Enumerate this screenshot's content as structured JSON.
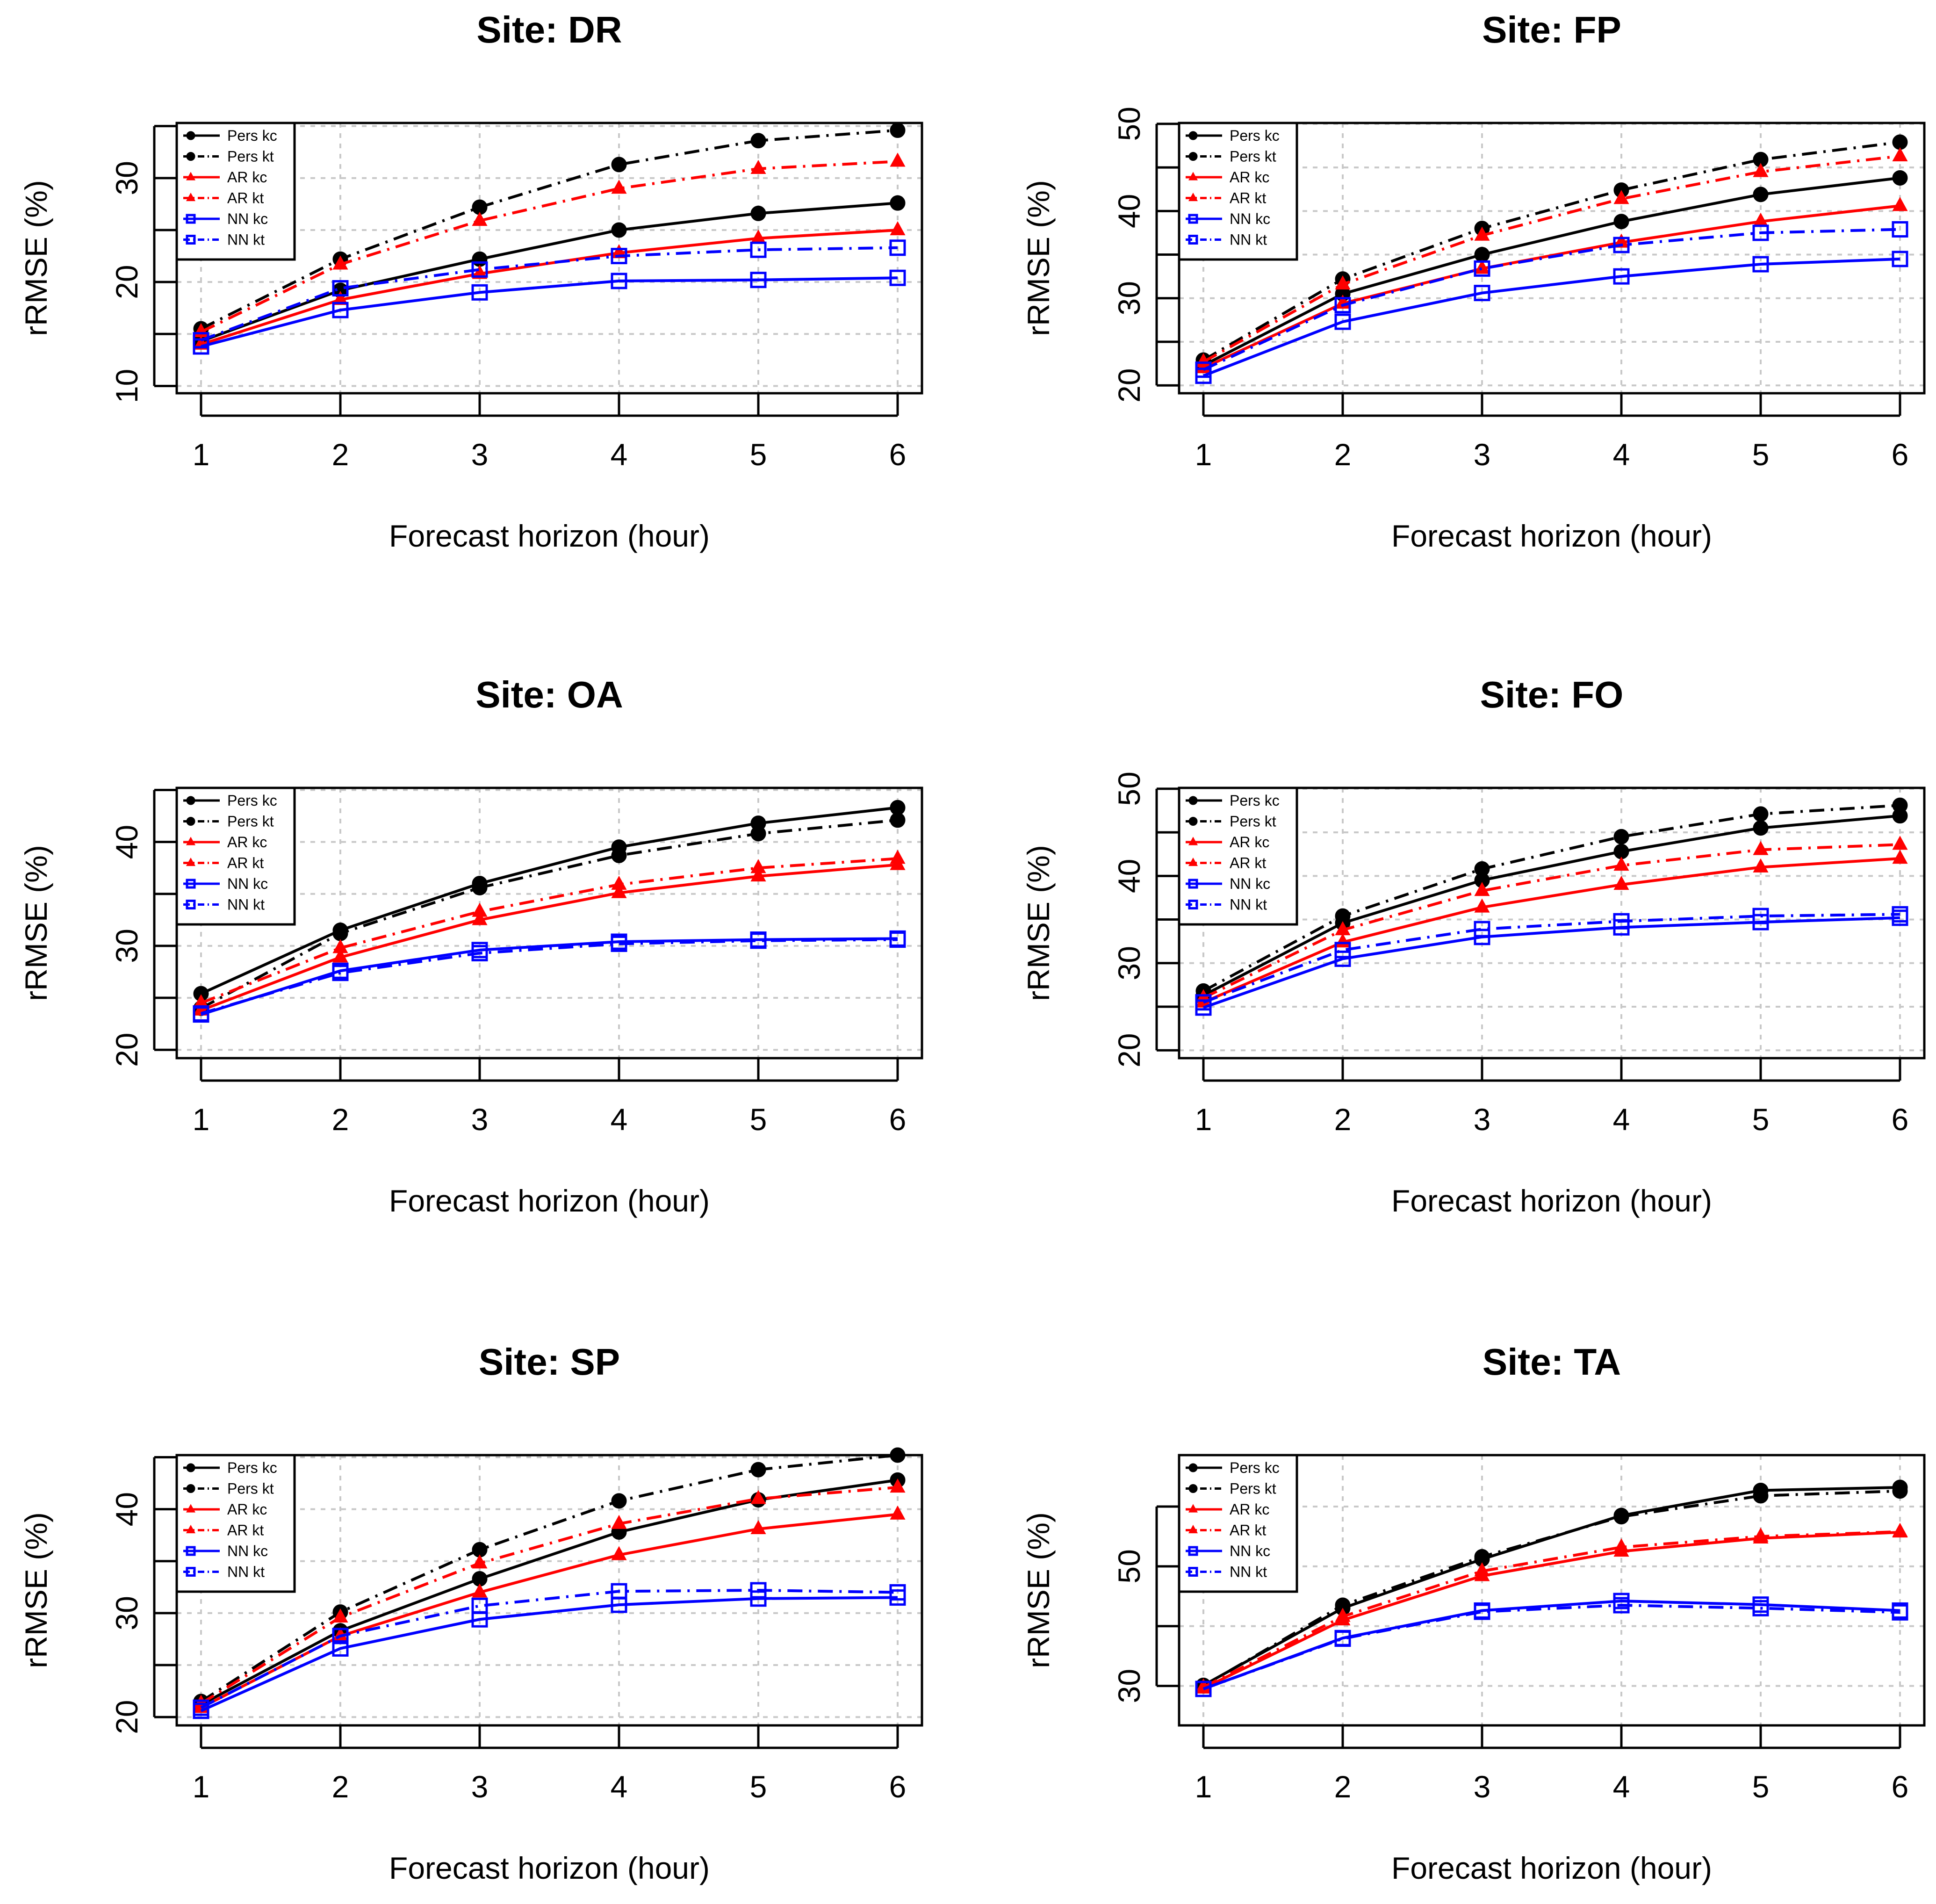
{
  "figure": {
    "colors": {
      "black": "#000000",
      "red": "#ff0000",
      "blue": "#0000ff",
      "grid": "#c8c8c8"
    }
  },
  "chart_data": [
    {
      "type": "line",
      "title": "Site: DR",
      "xlabel": "Forecast horizon (hour)",
      "ylabel": "rRMSE (%)",
      "x": [
        1,
        2,
        3,
        4,
        5,
        6
      ],
      "xticks": [
        "1",
        "2",
        "3",
        "4",
        "5",
        "6"
      ],
      "ylim": [
        9.3,
        35.3
      ],
      "yticks": [
        10,
        20,
        30
      ],
      "ygrid": [
        10,
        15,
        20,
        25,
        30,
        35
      ],
      "grid": true,
      "legend_position": "top-left",
      "series": [
        {
          "name": "Pers kc",
          "color": "#000000",
          "dash": "solid",
          "marker": "circle",
          "values": [
            14.3,
            19.2,
            22.2,
            25.0,
            26.6,
            27.6
          ]
        },
        {
          "name": "Pers kt",
          "color": "#000000",
          "dash": "dashdot",
          "marker": "circle",
          "values": [
            15.5,
            22.2,
            27.2,
            31.3,
            33.6,
            34.6
          ]
        },
        {
          "name": "AR kc",
          "color": "#ff0000",
          "dash": "solid",
          "marker": "triangle",
          "values": [
            14.0,
            18.3,
            20.8,
            22.8,
            24.2,
            25.0
          ]
        },
        {
          "name": "AR kt",
          "color": "#ff0000",
          "dash": "dashdot",
          "marker": "triangle",
          "values": [
            15.2,
            21.7,
            25.9,
            29.0,
            30.9,
            31.6
          ]
        },
        {
          "name": "NN kc",
          "color": "#0000ff",
          "dash": "solid",
          "marker": "square",
          "values": [
            13.8,
            17.3,
            19.0,
            20.1,
            20.2,
            20.4
          ]
        },
        {
          "name": "NN kt",
          "color": "#0000ff",
          "dash": "dashdot",
          "marker": "square",
          "values": [
            14.4,
            19.4,
            21.2,
            22.5,
            23.1,
            23.3
          ]
        }
      ]
    },
    {
      "type": "line",
      "title": "Site: FP",
      "xlabel": "Forecast horizon (hour)",
      "ylabel": "rRMSE (%)",
      "x": [
        1,
        2,
        3,
        4,
        5,
        6
      ],
      "xticks": [
        "1",
        "2",
        "3",
        "4",
        "5",
        "6"
      ],
      "ylim": [
        19.1,
        50.1
      ],
      "yticks": [
        20,
        30,
        40,
        50
      ],
      "ygrid": [
        20,
        25,
        30,
        35,
        40,
        45,
        50
      ],
      "grid": true,
      "legend_position": "top-left",
      "series": [
        {
          "name": "Pers kc",
          "color": "#000000",
          "dash": "solid",
          "marker": "circle",
          "values": [
            22.3,
            30.5,
            35.0,
            38.8,
            41.9,
            43.8
          ]
        },
        {
          "name": "Pers kt",
          "color": "#000000",
          "dash": "dashdot",
          "marker": "circle",
          "values": [
            22.9,
            32.2,
            38.0,
            42.4,
            45.9,
            47.9
          ]
        },
        {
          "name": "AR kc",
          "color": "#ff0000",
          "dash": "solid",
          "marker": "triangle",
          "values": [
            22.0,
            29.4,
            33.4,
            36.4,
            38.8,
            40.6
          ]
        },
        {
          "name": "AR kt",
          "color": "#ff0000",
          "dash": "dashdot",
          "marker": "triangle",
          "values": [
            22.7,
            31.6,
            37.2,
            41.4,
            44.5,
            46.3
          ]
        },
        {
          "name": "NN kc",
          "color": "#0000ff",
          "dash": "solid",
          "marker": "square",
          "values": [
            21.1,
            27.3,
            30.6,
            32.5,
            33.9,
            34.5
          ]
        },
        {
          "name": "NN kt",
          "color": "#0000ff",
          "dash": "dashdot",
          "marker": "square",
          "values": [
            21.8,
            29.2,
            33.4,
            36.1,
            37.5,
            37.9
          ]
        }
      ]
    },
    {
      "type": "line",
      "title": "Site: OA",
      "xlabel": "Forecast horizon (hour)",
      "ylabel": "rRMSE (%)",
      "x": [
        1,
        2,
        3,
        4,
        5,
        6
      ],
      "xticks": [
        "1",
        "2",
        "3",
        "4",
        "5",
        "6"
      ],
      "ylim": [
        19.2,
        45.2
      ],
      "yticks": [
        20,
        30,
        40
      ],
      "ygrid": [
        20,
        25,
        30,
        35,
        40,
        45
      ],
      "grid": true,
      "legend_position": "top-left",
      "series": [
        {
          "name": "Pers kc",
          "color": "#000000",
          "dash": "solid",
          "marker": "circle",
          "values": [
            25.4,
            31.5,
            36.0,
            39.5,
            41.8,
            43.3
          ]
        },
        {
          "name": "Pers kt",
          "color": "#000000",
          "dash": "dashdot",
          "marker": "circle",
          "values": [
            24.0,
            31.2,
            35.6,
            38.7,
            40.8,
            42.1
          ]
        },
        {
          "name": "AR kc",
          "color": "#ff0000",
          "dash": "solid",
          "marker": "triangle",
          "values": [
            23.8,
            28.9,
            32.5,
            35.1,
            36.7,
            37.8
          ]
        },
        {
          "name": "AR kt",
          "color": "#ff0000",
          "dash": "dashdot",
          "marker": "triangle",
          "values": [
            24.5,
            29.8,
            33.3,
            35.9,
            37.5,
            38.4
          ]
        },
        {
          "name": "NN kc",
          "color": "#0000ff",
          "dash": "solid",
          "marker": "square",
          "values": [
            23.4,
            27.6,
            29.6,
            30.4,
            30.6,
            30.7
          ]
        },
        {
          "name": "NN kt",
          "color": "#0000ff",
          "dash": "dashdot",
          "marker": "square",
          "values": [
            23.5,
            27.4,
            29.3,
            30.2,
            30.5,
            30.6
          ]
        }
      ]
    },
    {
      "type": "line",
      "title": "Site: FO",
      "xlabel": "Forecast horizon (hour)",
      "ylabel": "rRMSE (%)",
      "x": [
        1,
        2,
        3,
        4,
        5,
        6
      ],
      "xticks": [
        "1",
        "2",
        "3",
        "4",
        "5",
        "6"
      ],
      "ylim": [
        19.1,
        50.1
      ],
      "yticks": [
        20,
        30,
        40,
        50
      ],
      "ygrid": [
        20,
        25,
        30,
        35,
        40,
        45,
        50
      ],
      "grid": true,
      "legend_position": "top-left",
      "series": [
        {
          "name": "Pers kc",
          "color": "#000000",
          "dash": "solid",
          "marker": "circle",
          "values": [
            26.3,
            34.6,
            39.5,
            42.8,
            45.5,
            46.9
          ]
        },
        {
          "name": "Pers kt",
          "color": "#000000",
          "dash": "dashdot",
          "marker": "circle",
          "values": [
            26.8,
            35.4,
            40.8,
            44.5,
            47.1,
            48.1
          ]
        },
        {
          "name": "AR kc",
          "color": "#ff0000",
          "dash": "solid",
          "marker": "triangle",
          "values": [
            25.5,
            32.4,
            36.4,
            39.0,
            41.0,
            42.0
          ]
        },
        {
          "name": "AR kt",
          "color": "#ff0000",
          "dash": "dashdot",
          "marker": "triangle",
          "values": [
            26.0,
            33.8,
            38.3,
            41.2,
            43.0,
            43.6
          ]
        },
        {
          "name": "NN kc",
          "color": "#0000ff",
          "dash": "solid",
          "marker": "square",
          "values": [
            24.9,
            30.5,
            33.0,
            34.1,
            34.7,
            35.2
          ]
        },
        {
          "name": "NN kt",
          "color": "#0000ff",
          "dash": "dashdot",
          "marker": "square",
          "values": [
            25.5,
            31.5,
            33.9,
            34.8,
            35.4,
            35.6
          ]
        }
      ]
    },
    {
      "type": "line",
      "title": "Site: SP",
      "xlabel": "Forecast horizon (hour)",
      "ylabel": "rRMSE (%)",
      "x": [
        1,
        2,
        3,
        4,
        5,
        6
      ],
      "xticks": [
        "1",
        "2",
        "3",
        "4",
        "5",
        "6"
      ],
      "ylim": [
        19.2,
        45.2
      ],
      "yticks": [
        20,
        30,
        40
      ],
      "ygrid": [
        20,
        25,
        30,
        35,
        40,
        45
      ],
      "grid": true,
      "legend_position": "top-left",
      "series": [
        {
          "name": "Pers kc",
          "color": "#000000",
          "dash": "solid",
          "marker": "circle",
          "values": [
            21.2,
            28.3,
            33.3,
            37.8,
            40.9,
            42.8
          ]
        },
        {
          "name": "Pers kt",
          "color": "#000000",
          "dash": "dashdot",
          "marker": "circle",
          "values": [
            21.5,
            30.1,
            36.1,
            40.8,
            43.8,
            45.2
          ]
        },
        {
          "name": "AR kc",
          "color": "#ff0000",
          "dash": "solid",
          "marker": "triangle",
          "values": [
            20.9,
            27.8,
            32.0,
            35.6,
            38.1,
            39.5
          ]
        },
        {
          "name": "AR kt",
          "color": "#ff0000",
          "dash": "dashdot",
          "marker": "triangle",
          "values": [
            21.3,
            29.6,
            34.8,
            38.6,
            41.0,
            42.1
          ]
        },
        {
          "name": "NN kc",
          "color": "#0000ff",
          "dash": "solid",
          "marker": "square",
          "values": [
            20.6,
            26.6,
            29.4,
            30.8,
            31.4,
            31.5
          ]
        },
        {
          "name": "NN kt",
          "color": "#0000ff",
          "dash": "dashdot",
          "marker": "square",
          "values": [
            20.9,
            27.8,
            30.7,
            32.1,
            32.2,
            32.0
          ]
        }
      ]
    },
    {
      "type": "line",
      "title": "Site: TA",
      "xlabel": "Forecast horizon (hour)",
      "ylabel": "rRMSE (%)",
      "x": [
        1,
        2,
        3,
        4,
        5,
        6
      ],
      "xticks": [
        "1",
        "2",
        "3",
        "4",
        "5",
        "6"
      ],
      "ylim": [
        23.4,
        68.6
      ],
      "yticks": [
        30,
        50
      ],
      "ygrid": [
        30,
        40,
        50,
        60
      ],
      "grid": true,
      "legend_position": "top-left",
      "series": [
        {
          "name": "Pers kc",
          "color": "#000000",
          "dash": "solid",
          "marker": "circle",
          "values": [
            30.1,
            43.0,
            51.2,
            58.5,
            62.7,
            63.2
          ]
        },
        {
          "name": "Pers kt",
          "color": "#000000",
          "dash": "dashdot",
          "marker": "circle",
          "values": [
            30.0,
            43.5,
            51.6,
            58.3,
            61.8,
            62.6
          ]
        },
        {
          "name": "AR kc",
          "color": "#ff0000",
          "dash": "solid",
          "marker": "triangle",
          "values": [
            29.6,
            41.0,
            48.4,
            52.5,
            54.7,
            55.7
          ]
        },
        {
          "name": "AR kt",
          "color": "#ff0000",
          "dash": "dashdot",
          "marker": "triangle",
          "values": [
            29.8,
            41.6,
            49.2,
            53.2,
            55.0,
            55.8
          ]
        },
        {
          "name": "NN kc",
          "color": "#0000ff",
          "dash": "solid",
          "marker": "square",
          "values": [
            29.5,
            38.0,
            42.6,
            44.2,
            43.6,
            42.6
          ]
        },
        {
          "name": "NN kt",
          "color": "#0000ff",
          "dash": "dashdot",
          "marker": "square",
          "values": [
            29.5,
            37.9,
            42.4,
            43.5,
            43.0,
            42.3
          ]
        }
      ]
    }
  ]
}
